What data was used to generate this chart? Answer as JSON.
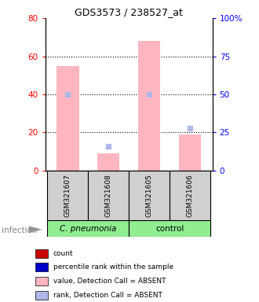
{
  "title": "GDS3573 / 238527_at",
  "samples": [
    "GSM321607",
    "GSM321608",
    "GSM321605",
    "GSM321606"
  ],
  "bar_values_absent": [
    55,
    9,
    68,
    19
  ],
  "rank_values_absent": [
    50,
    16,
    50,
    28
  ],
  "left_ylim": [
    0,
    80
  ],
  "right_ylim": [
    0,
    100
  ],
  "left_yticks": [
    0,
    20,
    40,
    60,
    80
  ],
  "right_yticks": [
    0,
    25,
    50,
    75,
    100
  ],
  "right_yticklabels": [
    "0",
    "25",
    "50",
    "75",
    "100%"
  ],
  "grid_values": [
    20,
    40,
    60
  ],
  "bar_color_absent": "#ffb6c1",
  "rank_dot_color_absent": "#b0b8e8",
  "legend_items": [
    {
      "color": "#cc0000",
      "label": "count"
    },
    {
      "color": "#0000cc",
      "label": "percentile rank within the sample"
    },
    {
      "color": "#ffb6c1",
      "label": "value, Detection Call = ABSENT"
    },
    {
      "color": "#b0b8e8",
      "label": "rank, Detection Call = ABSENT"
    }
  ],
  "group1_label": "C. pneumonia",
  "group2_label": "control",
  "group_color": "#90ee90",
  "infection_label": "infection",
  "sample_box_color": "#d0d0d0",
  "figsize": [
    3.3,
    3.84
  ],
  "dpi": 100
}
